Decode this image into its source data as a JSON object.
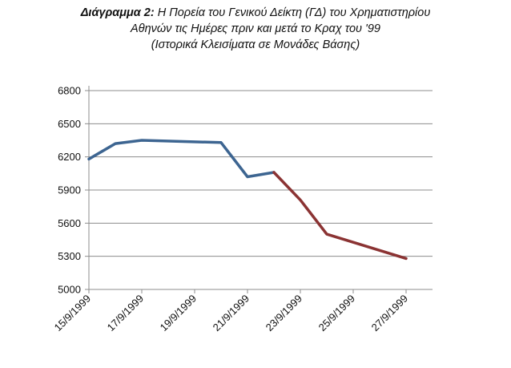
{
  "title": {
    "prefix": "Διάγραμμα 2:",
    "line1": "Η Πορεία του Γενικού Δείκτη (ΓΔ) του Χρηματιστηρίου",
    "line2": "Αθηνών τις Ημέρες πριν και μετά το Κραχ του '99",
    "line3": "(Ιστορικά Κλεισίματα σε Μονάδες Βάσης)"
  },
  "colors": {
    "before": "#3d6591",
    "after": "#8b3333",
    "grid": "#8c8c8c",
    "axis": "#8c8c8c"
  },
  "chart_data": {
    "type": "line",
    "title": "Διάγραμμα 2: Η Πορεία του Γενικού Δείκτη (ΓΔ) του Χρηματιστηρίου Αθηνών τις Ημέρες πριν και μετά το Κραχ του '99 (Ιστορικά Κλεισίματα σε Μονάδες Βάσης)",
    "xlabel": "",
    "ylabel": "",
    "ylim": [
      5000,
      6800
    ],
    "yticks": [
      5000,
      5300,
      5600,
      5900,
      6200,
      6500,
      6800
    ],
    "xlim": [
      "15/9/1999",
      "28/9/1999"
    ],
    "xticks": [
      "15/9/1999",
      "17/9/1999",
      "19/9/1999",
      "21/9/1999",
      "23/9/1999",
      "25/9/1999",
      "27/9/1999"
    ],
    "grid": true,
    "legend": "none",
    "series": [
      {
        "x": [
          "15/9/1999",
          "16/9/1999",
          "17/9/1999",
          "20/9/1999",
          "21/9/1999",
          "22/9/1999"
        ],
        "values": [
          6180,
          6320,
          6350,
          6330,
          6020,
          6060
        ],
        "color": "#3d6591"
      },
      {
        "x": [
          "22/9/1999",
          "23/9/1999",
          "24/9/1999",
          "27/9/1999"
        ],
        "values": [
          6060,
          5810,
          5500,
          5280
        ],
        "color": "#8b3333"
      }
    ]
  }
}
